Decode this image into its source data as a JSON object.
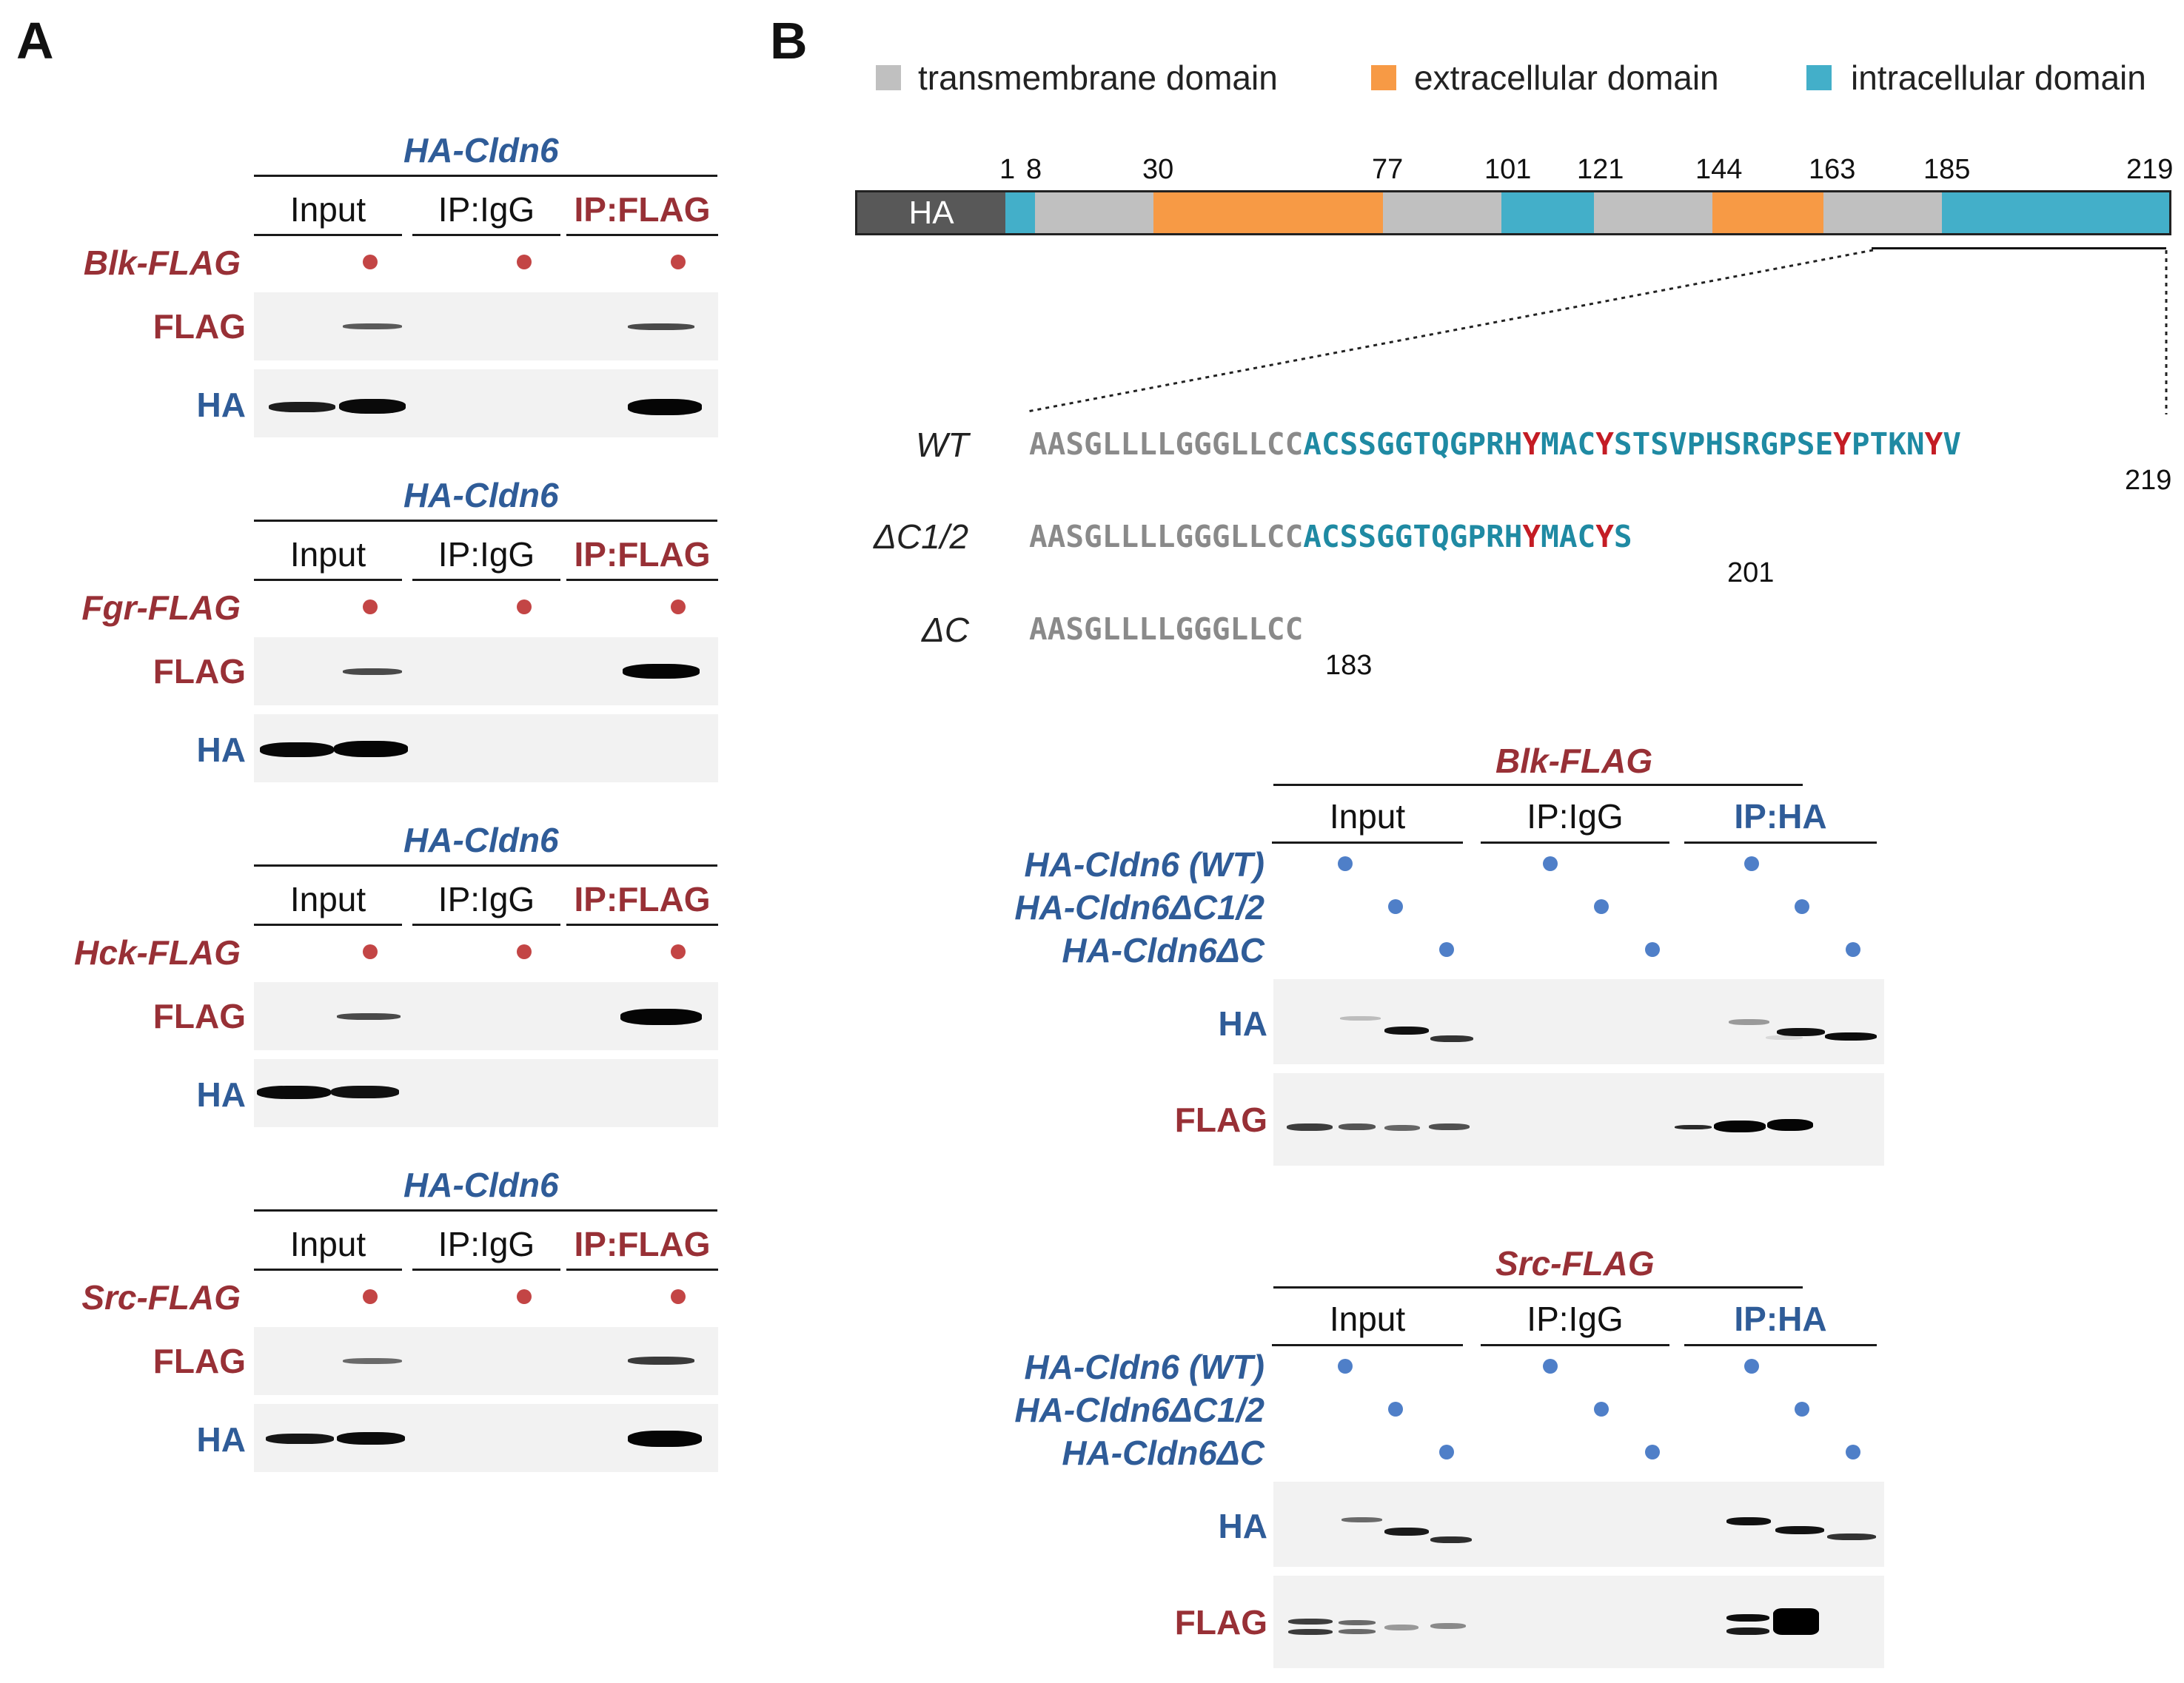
{
  "panels": {
    "a": "A",
    "b": "B"
  },
  "panel_a": {
    "blocks": [
      {
        "construct": "HA-Cldn6",
        "lanes": [
          "Input",
          "IP:IgG",
          "IP:FLAG"
        ],
        "kinase": "Blk-FLAG",
        "row1": "FLAG",
        "row2": "HA"
      },
      {
        "construct": "HA-Cldn6",
        "lanes": [
          "Input",
          "IP:IgG",
          "IP:FLAG"
        ],
        "kinase": "Fgr-FLAG",
        "row1": "FLAG",
        "row2": "HA"
      },
      {
        "construct": "HA-Cldn6",
        "lanes": [
          "Input",
          "IP:IgG",
          "IP:FLAG"
        ],
        "kinase": "Hck-FLAG",
        "row1": "FLAG",
        "row2": "HA"
      },
      {
        "construct": "HA-Cldn6",
        "lanes": [
          "Input",
          "IP:IgG",
          "IP:FLAG"
        ],
        "kinase": "Src-FLAG",
        "row1": "FLAG",
        "row2": "HA"
      }
    ]
  },
  "legend": [
    {
      "label": "transmembrane domain",
      "color": "#c0c0c0"
    },
    {
      "label": "extracellular domain",
      "color": "#f79a45"
    },
    {
      "label": "intracellular domain",
      "color": "#43afc9"
    }
  ],
  "domain_map": {
    "tag": "HA",
    "positions": [
      "1",
      "8",
      "30",
      "77",
      "101",
      "121",
      "144",
      "163",
      "185",
      "219"
    ]
  },
  "sequences": [
    {
      "name": "WT",
      "gray": "AASGLLLLGGGLLCC",
      "teal": "ACSSGGTQGPRH",
      "y1": "Y",
      "t2": "MAC",
      "y2": "Y",
      "t3": "STSVPHSRGPSE",
      "y3": "Y",
      "t4": "PTKN",
      "y4": "Y",
      "t5": "V",
      "end": "219"
    },
    {
      "name": "ΔC1/2",
      "gray": "AASGLLLLGGGLLCC",
      "teal": "ACSSGGTQGPRH",
      "y1": "Y",
      "t2": "MAC",
      "y2": "Y",
      "t3": "S",
      "end": "201"
    },
    {
      "name": "ΔC",
      "gray": "AASGLLLLGGGLLCC",
      "end": "183"
    }
  ],
  "panel_b": {
    "blocks": [
      {
        "kinase": "Blk-FLAG",
        "lanes": [
          "Input",
          "IP:IgG",
          "IP:HA"
        ],
        "constructs": [
          "HA-Cldn6 (WT)",
          "HA-Cldn6ΔC1/2",
          "HA-Cldn6ΔC"
        ],
        "row1": "HA",
        "row2": "FLAG"
      },
      {
        "kinase": "Src-FLAG",
        "lanes": [
          "Input",
          "IP:IgG",
          "IP:HA"
        ],
        "constructs": [
          "HA-Cldn6 (WT)",
          "HA-Cldn6ΔC1/2",
          "HA-Cldn6ΔC"
        ],
        "row1": "HA",
        "row2": "FLAG"
      }
    ]
  }
}
